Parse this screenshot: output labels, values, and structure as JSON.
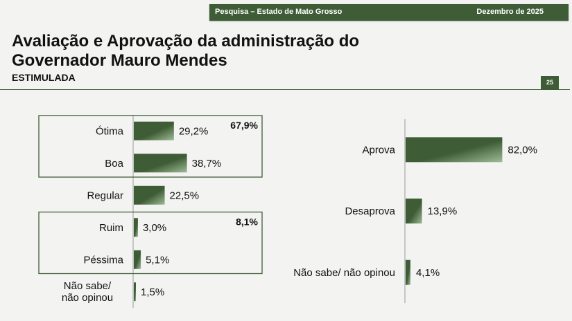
{
  "header": {
    "survey": "Pesquisa – Estado de Mato Grosso",
    "date": "Dezembro de 2025",
    "title": "Avaliação e Aprovação da administração do Governador Mauro Mendes",
    "subtitle": "ESTIMULADA",
    "page": "25"
  },
  "colors": {
    "bar": "#3e5d36",
    "bar_light": "#9fbb97",
    "accent": "#3e5d36"
  },
  "chart_data": [
    {
      "type": "bar",
      "orientation": "horizontal",
      "categories": [
        "Ótima",
        "Boa",
        "Regular",
        "Ruim",
        "Péssima",
        "Não sabe/ não opinou"
      ],
      "values": [
        29.2,
        38.7,
        22.5,
        3.0,
        5.1,
        1.5
      ],
      "value_labels": [
        "29,2%",
        "38,7%",
        "22,5%",
        "3,0%",
        "5,1%",
        "1,5%"
      ],
      "groups": [
        {
          "categories": [
            "Ótima",
            "Boa"
          ],
          "total": "67,9%"
        },
        {
          "categories": [
            "Ruim",
            "Péssima"
          ],
          "total": "8,1%"
        }
      ],
      "title": "",
      "xlabel": "",
      "ylabel": ""
    },
    {
      "type": "bar",
      "orientation": "horizontal",
      "categories": [
        "Aprova",
        "Desaprova",
        "Não sabe/ não opinou"
      ],
      "values": [
        82.0,
        13.9,
        4.1
      ],
      "value_labels": [
        "82,0%",
        "13,9%",
        "4,1%"
      ],
      "title": "",
      "xlabel": "",
      "ylabel": ""
    }
  ]
}
